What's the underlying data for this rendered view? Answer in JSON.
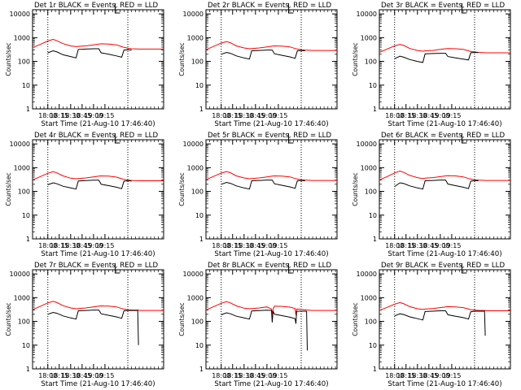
{
  "figure": {
    "background": "#ffffff",
    "axis_color": "#000000",
    "events_color": "#000000",
    "lld_color": "#ff0000"
  },
  "shared": {
    "ylabel": "Counts/sec",
    "xlabel": "Start Time (21-Aug-10 17:46:40)",
    "x_tick_labels": [
      "18:00",
      "18:15",
      "18:30",
      "18:45",
      "19:00",
      "19:15"
    ],
    "y_tick_labels": [
      "1",
      "10",
      "100",
      "1000",
      "10000"
    ]
  },
  "chart_data": [
    {
      "type": "line",
      "title": "Det 1r  BLACK = Events, RED = LLD",
      "xlabel": "Start Time (21-Aug-10 17:46:40)",
      "ylabel": "Counts/sec",
      "xlim": [
        -20,
        152
      ],
      "ylim": [
        1,
        15000
      ],
      "yscale": "log",
      "grid": false,
      "vlines": [
        0,
        105
      ],
      "x": [
        -20,
        -10,
        0,
        7,
        12,
        20,
        30,
        37,
        40,
        50,
        60,
        67,
        70,
        80,
        90,
        97,
        100,
        105,
        110,
        120,
        130,
        140,
        152
      ],
      "series": [
        {
          "name": "LLD",
          "color": "#ff0000",
          "values": [
            380,
            520,
            720,
            850,
            740,
            560,
            450,
            420,
            430,
            450,
            500,
            540,
            550,
            540,
            500,
            420,
            390,
            360,
            340,
            330,
            330,
            330,
            330
          ]
        },
        {
          "name": "Events",
          "color": "#000000",
          "values": [
            null,
            null,
            230,
            280,
            250,
            190,
            160,
            140,
            320,
            330,
            340,
            340,
            230,
            200,
            170,
            150,
            300,
            310,
            300,
            null,
            null,
            null,
            null
          ]
        }
      ]
    },
    {
      "type": "line",
      "title": "Det 2r  BLACK = Events, RED = LLD",
      "xlabel": "Start Time (21-Aug-10 17:46:40)",
      "ylabel": "Counts/sec",
      "xlim": [
        -20,
        152
      ],
      "ylim": [
        1,
        15000
      ],
      "yscale": "log",
      "grid": false,
      "vlines": [
        0,
        105
      ],
      "x": [
        -20,
        -10,
        0,
        7,
        12,
        20,
        30,
        37,
        40,
        50,
        60,
        67,
        70,
        80,
        90,
        97,
        100,
        105,
        110,
        120,
        130,
        140,
        152
      ],
      "series": [
        {
          "name": "LLD",
          "color": "#ff0000",
          "values": [
            310,
            430,
            590,
            690,
            610,
            450,
            370,
            340,
            350,
            370,
            410,
            440,
            450,
            440,
            410,
            350,
            330,
            310,
            300,
            290,
            290,
            290,
            290
          ]
        },
        {
          "name": "Events",
          "color": "#000000",
          "values": [
            null,
            null,
            200,
            240,
            220,
            170,
            140,
            125,
            280,
            290,
            300,
            300,
            210,
            180,
            155,
            135,
            280,
            290,
            280,
            null,
            null,
            null,
            null
          ]
        }
      ]
    },
    {
      "type": "line",
      "title": "Det 3r  BLACK = Events, RED = LLD",
      "xlabel": "Start Time (21-Aug-10 17:46:40)",
      "ylabel": "Counts/sec",
      "xlim": [
        -20,
        152
      ],
      "ylim": [
        1,
        15000
      ],
      "yscale": "log",
      "grid": false,
      "vlines": [
        0,
        105
      ],
      "x": [
        -20,
        -10,
        0,
        7,
        12,
        20,
        30,
        37,
        40,
        50,
        60,
        67,
        70,
        80,
        90,
        97,
        100,
        105,
        110,
        120,
        130,
        140,
        152
      ],
      "series": [
        {
          "name": "LLD",
          "color": "#ff0000",
          "values": [
            240,
            330,
            450,
            520,
            470,
            350,
            290,
            270,
            280,
            290,
            320,
            340,
            350,
            340,
            320,
            280,
            260,
            250,
            240,
            230,
            230,
            230,
            230
          ]
        },
        {
          "name": "Events",
          "color": "#000000",
          "values": [
            null,
            null,
            130,
            165,
            150,
            120,
            100,
            90,
            210,
            215,
            220,
            220,
            160,
            140,
            125,
            115,
            230,
            240,
            235,
            null,
            null,
            null,
            null
          ]
        }
      ]
    },
    {
      "type": "line",
      "title": "Det 4r  BLACK = Events, RED = LLD",
      "xlabel": "Start Time (21-Aug-10 17:46:40)",
      "ylabel": "Counts/sec",
      "xlim": [
        -20,
        152
      ],
      "ylim": [
        1,
        15000
      ],
      "yscale": "log",
      "grid": false,
      "vlines": [
        0,
        105
      ],
      "x": [
        -20,
        -10,
        0,
        7,
        12,
        20,
        30,
        37,
        40,
        50,
        60,
        67,
        70,
        80,
        90,
        97,
        100,
        105,
        110,
        120,
        130,
        140,
        152
      ],
      "series": [
        {
          "name": "LLD",
          "color": "#ff0000",
          "values": [
            300,
            420,
            580,
            680,
            600,
            450,
            360,
            340,
            350,
            370,
            410,
            440,
            450,
            440,
            400,
            340,
            320,
            300,
            290,
            280,
            280,
            280,
            280
          ]
        },
        {
          "name": "Events",
          "color": "#000000",
          "values": [
            null,
            null,
            190,
            230,
            210,
            165,
            140,
            125,
            275,
            285,
            295,
            295,
            200,
            175,
            150,
            130,
            270,
            280,
            275,
            null,
            null,
            null,
            null
          ]
        }
      ]
    },
    {
      "type": "line",
      "title": "Det 5r  BLACK = Events, RED = LLD",
      "xlabel": "Start Time (21-Aug-10 17:46:40)",
      "ylabel": "Counts/sec",
      "xlim": [
        -20,
        152
      ],
      "ylim": [
        1,
        15000
      ],
      "yscale": "log",
      "grid": false,
      "vlines": [
        0,
        105
      ],
      "x": [
        -20,
        -10,
        0,
        7,
        12,
        20,
        30,
        37,
        40,
        50,
        60,
        67,
        70,
        80,
        90,
        97,
        100,
        105,
        110,
        120,
        130,
        140,
        152
      ],
      "series": [
        {
          "name": "LLD",
          "color": "#ff0000",
          "values": [
            310,
            430,
            590,
            690,
            610,
            450,
            370,
            340,
            350,
            370,
            410,
            440,
            450,
            440,
            410,
            350,
            330,
            310,
            300,
            290,
            290,
            290,
            290
          ]
        },
        {
          "name": "Events",
          "color": "#000000",
          "values": [
            null,
            null,
            200,
            240,
            220,
            170,
            140,
            125,
            280,
            290,
            300,
            300,
            210,
            180,
            155,
            135,
            280,
            290,
            280,
            null,
            null,
            null,
            null
          ]
        }
      ]
    },
    {
      "type": "line",
      "title": "Det 6r  BLACK = Events, RED = LLD",
      "xlabel": "Start Time (21-Aug-10 17:46:40)",
      "ylabel": "Counts/sec",
      "xlim": [
        -20,
        152
      ],
      "ylim": [
        1,
        15000
      ],
      "yscale": "log",
      "grid": false,
      "vlines": [
        0,
        105
      ],
      "x": [
        -20,
        -10,
        0,
        7,
        12,
        20,
        30,
        37,
        40,
        50,
        60,
        67,
        70,
        80,
        90,
        97,
        100,
        105,
        110,
        120,
        130,
        140,
        152
      ],
      "series": [
        {
          "name": "LLD",
          "color": "#ff0000",
          "values": [
            300,
            420,
            600,
            720,
            630,
            470,
            380,
            350,
            360,
            380,
            420,
            450,
            460,
            450,
            410,
            350,
            330,
            310,
            300,
            290,
            290,
            290,
            290
          ]
        },
        {
          "name": "Events",
          "color": "#000000",
          "values": [
            null,
            null,
            160,
            230,
            215,
            170,
            140,
            125,
            280,
            290,
            300,
            300,
            205,
            175,
            150,
            130,
            270,
            285,
            280,
            null,
            null,
            null,
            null
          ]
        }
      ]
    },
    {
      "type": "line",
      "title": "Det 7r  BLACK = Events, RED = LLD",
      "xlabel": "Start Time (21-Aug-10 17:46:40)",
      "ylabel": "Counts/sec",
      "xlim": [
        -20,
        152
      ],
      "ylim": [
        1,
        15000
      ],
      "yscale": "log",
      "grid": false,
      "vlines": [
        0,
        105
      ],
      "x": [
        -20,
        -10,
        0,
        7,
        12,
        20,
        30,
        37,
        40,
        50,
        60,
        67,
        70,
        80,
        90,
        97,
        100,
        105,
        110,
        118,
        119,
        120,
        130,
        140,
        152
      ],
      "series": [
        {
          "name": "LLD",
          "color": "#ff0000",
          "values": [
            310,
            430,
            600,
            700,
            620,
            460,
            370,
            340,
            350,
            370,
            410,
            440,
            450,
            440,
            410,
            350,
            330,
            310,
            300,
            300,
            300,
            290,
            290,
            290,
            290
          ]
        },
        {
          "name": "Events",
          "color": "#000000",
          "values": [
            null,
            null,
            200,
            240,
            220,
            170,
            140,
            125,
            280,
            290,
            300,
            300,
            210,
            180,
            155,
            135,
            280,
            290,
            290,
            290,
            10,
            null,
            null,
            null,
            null
          ]
        }
      ]
    },
    {
      "type": "line",
      "title": "Det 8r  BLACK = Events, RED = LLD",
      "xlabel": "Start Time (21-Aug-10 17:46:40)",
      "ylabel": "Counts/sec",
      "xlim": [
        -20,
        152
      ],
      "ylim": [
        1,
        15000
      ],
      "yscale": "log",
      "grid": false,
      "vlines": [
        0,
        105
      ],
      "x": [
        -20,
        -10,
        0,
        7,
        12,
        20,
        30,
        37,
        40,
        50,
        60,
        66,
        67,
        68,
        70,
        80,
        90,
        97,
        98,
        99,
        100,
        110,
        112,
        113,
        120,
        130,
        140,
        152
      ],
      "series": [
        {
          "name": "LLD",
          "color": "#ff0000",
          "values": [
            300,
            420,
            580,
            680,
            600,
            450,
            360,
            340,
            350,
            370,
            410,
            330,
            200,
            330,
            440,
            430,
            400,
            350,
            180,
            330,
            330,
            310,
            300,
            300,
            290,
            290,
            290,
            290
          ]
        },
        {
          "name": "Events",
          "color": "#000000",
          "values": [
            null,
            null,
            190,
            230,
            210,
            165,
            140,
            125,
            275,
            285,
            295,
            290,
            90,
            270,
            200,
            175,
            150,
            130,
            80,
            260,
            270,
            270,
            265,
            6,
            null,
            null,
            null,
            null
          ]
        }
      ]
    },
    {
      "type": "line",
      "title": "Det 9r  BLACK = Events, RED = LLD",
      "xlabel": "Start Time (21-Aug-10 17:46:40)",
      "ylabel": "Counts/sec",
      "xlim": [
        -20,
        152
      ],
      "ylim": [
        1,
        15000
      ],
      "yscale": "log",
      "grid": false,
      "vlines": [
        0,
        105
      ],
      "x": [
        -20,
        -10,
        0,
        7,
        12,
        20,
        30,
        37,
        40,
        50,
        60,
        67,
        70,
        80,
        90,
        97,
        100,
        105,
        110,
        118,
        119,
        120,
        130,
        140,
        152
      ],
      "series": [
        {
          "name": "LLD",
          "color": "#ff0000",
          "values": [
            290,
            390,
            530,
            620,
            550,
            420,
            340,
            320,
            330,
            350,
            380,
            410,
            420,
            410,
            380,
            330,
            310,
            300,
            290,
            290,
            290,
            280,
            280,
            280,
            280
          ]
        },
        {
          "name": "Events",
          "color": "#000000",
          "values": [
            null,
            null,
            170,
            210,
            195,
            155,
            130,
            115,
            260,
            270,
            280,
            280,
            190,
            165,
            145,
            125,
            255,
            270,
            270,
            270,
            25,
            null,
            null,
            null,
            null
          ]
        }
      ]
    }
  ]
}
